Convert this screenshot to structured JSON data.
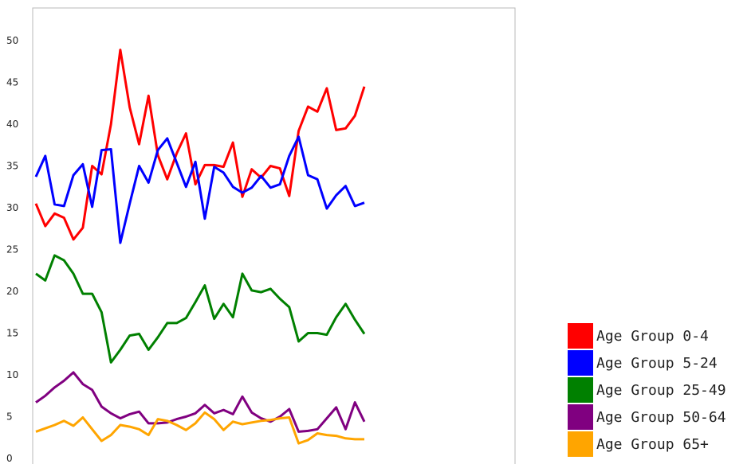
{
  "chart_data": {
    "type": "line",
    "title": "",
    "xlabel": "",
    "ylabel": "",
    "ylim": [
      0,
      55
    ],
    "yticks": [
      "0",
      "5",
      "10",
      "15",
      "20",
      "25",
      "30",
      "35",
      "40",
      "45",
      "50"
    ],
    "grid": false,
    "legend_position": "bottom-right",
    "series": [
      {
        "name": "Age Group 0-4",
        "color": "#ff0000",
        "values": [
          30.5,
          27.8,
          29.3,
          28.8,
          26.2,
          27.6,
          35.0,
          34.0,
          40.0,
          48.9,
          42.0,
          37.6,
          43.4,
          36.3,
          33.4,
          36.5,
          38.9,
          32.8,
          35.1,
          35.1,
          34.9,
          37.8,
          31.3,
          34.6,
          33.6,
          35.0,
          34.7,
          31.4,
          39.2,
          42.1,
          41.5,
          44.3,
          39.3,
          39.5,
          41.0,
          44.5
        ]
      },
      {
        "name": "Age Group 5-24",
        "color": "#0000ff",
        "values": [
          33.7,
          36.2,
          30.4,
          30.2,
          33.9,
          35.2,
          30.1,
          36.9,
          37.0,
          25.8,
          30.5,
          35.0,
          33.0,
          36.9,
          38.3,
          35.4,
          32.5,
          35.5,
          28.7,
          34.9,
          34.2,
          32.5,
          31.8,
          32.4,
          33.8,
          32.4,
          32.8,
          36.2,
          38.5,
          33.9,
          33.4,
          29.9,
          31.5,
          32.6,
          30.2,
          30.6
        ]
      },
      {
        "name": "Age Group 25-49",
        "color": "#008000",
        "values": [
          22.1,
          21.3,
          24.3,
          23.7,
          22.1,
          19.7,
          19.7,
          17.5,
          11.5,
          13.0,
          14.7,
          14.9,
          13.0,
          14.5,
          16.2,
          16.2,
          16.8,
          18.7,
          20.7,
          16.7,
          18.5,
          16.9,
          22.1,
          20.1,
          19.9,
          20.3,
          19.1,
          18.1,
          14.0,
          15.0,
          15.0,
          14.8,
          16.9,
          18.5,
          16.6,
          14.9
        ]
      },
      {
        "name": "Age Group 50-64",
        "color": "#800080",
        "values": [
          6.7,
          7.5,
          8.5,
          9.3,
          10.3,
          8.9,
          8.2,
          6.2,
          5.4,
          4.8,
          5.3,
          5.6,
          4.2,
          4.2,
          4.3,
          4.7,
          5.0,
          5.4,
          6.4,
          5.4,
          5.8,
          5.3,
          7.4,
          5.5,
          4.8,
          4.4,
          5.0,
          5.9,
          3.2,
          3.3,
          3.5,
          4.8,
          6.1,
          3.5,
          6.7,
          4.4
        ]
      },
      {
        "name": "Age Group 65+",
        "color": "#ffa500",
        "values": [
          3.2,
          3.6,
          4.0,
          4.5,
          3.9,
          4.9,
          3.5,
          2.1,
          2.8,
          4.0,
          3.8,
          3.5,
          2.8,
          4.7,
          4.5,
          4.0,
          3.4,
          4.2,
          5.5,
          4.7,
          3.4,
          4.4,
          4.1,
          4.3,
          4.5,
          4.6,
          4.8,
          4.9,
          1.8,
          2.2,
          3.0,
          2.8,
          2.7,
          2.4,
          2.3,
          2.3
        ]
      }
    ]
  }
}
